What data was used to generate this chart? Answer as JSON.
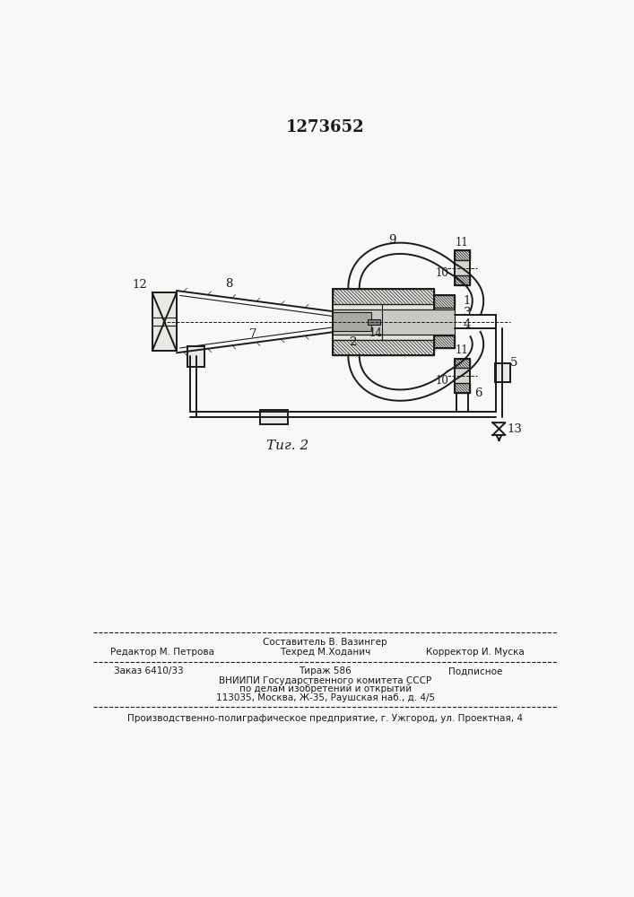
{
  "title": "1273652",
  "fig_label": "Τиг. 2",
  "bg_color": "#f8f8f6",
  "line_color": "#1a1a1a",
  "footer_lines": [
    "Составитель В. Вазингер",
    "Редактор М. Петрова",
    "Техред М.Ходанич",
    "Корректор И. Муска",
    "Заказ 6410/33",
    "Тираж 586",
    "Подписное",
    "ВНИИПИ Государственного комитета СССР",
    "по делам изобретений и открытий",
    "113035, Москва, Ж-35, Раушская наб., д. 4/5",
    "Производственно-полиграфическое предприятие, г. Ужгород, ул. Проектная, 4"
  ]
}
